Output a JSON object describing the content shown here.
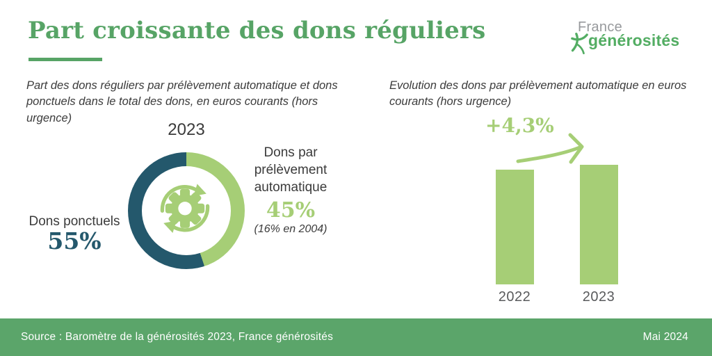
{
  "header": {
    "title": "Part croissante des dons réguliers",
    "logo": {
      "top": "France",
      "bottom": "générosités"
    }
  },
  "left_section": {
    "subtitle": "Part des dons réguliers par prélèvement automatique et dons ponctuels dans le total des dons, en euros courants (hors urgence)",
    "year_label": "2023",
    "left_label": "Dons ponctuels",
    "left_value": "55%",
    "right_label": "Dons par prélèvement automatique",
    "right_value": "45%",
    "right_note": "(16% en 2004)"
  },
  "right_section": {
    "subtitle": "Evolution des dons par prélèvement automatique en euros courants (hors urgence)",
    "growth_label": "+4,3%",
    "bar_labels": [
      "2022",
      "2023"
    ]
  },
  "footer": {
    "source": "Source : Baromètre de la générosités 2023, France générosités",
    "date": "Mai 2024"
  },
  "colors": {
    "title_green": "#57a466",
    "light_green": "#a6ce76",
    "dark_teal": "#24586c",
    "footer_green": "#5ba56a",
    "logo_green": "#53ad63",
    "text_dark": "#3b3b3b",
    "text_gray": "#97999c"
  },
  "chart_data": [
    {
      "type": "pie",
      "donut": true,
      "title": "2023",
      "labels": [
        "Dons par prélèvement automatique",
        "Dons ponctuels"
      ],
      "values": [
        45,
        55
      ],
      "unit": "%",
      "colors": [
        "#a6ce76",
        "#24586c"
      ],
      "start_angle_deg": 0,
      "clockwise": true,
      "annotations": [
        "45% (16% en 2004)",
        "55%"
      ],
      "legend_position": "sides",
      "center_icon": "gear-sync"
    },
    {
      "type": "bar",
      "title": "Evolution des dons par prélèvement automatique en euros courants (hors urgence)",
      "categories": [
        "2022",
        "2023"
      ],
      "values": [
        100,
        104.3
      ],
      "values_note": "no value axis shown; relative index estimated from +4,3% annotation",
      "annotation": "+4,3%",
      "bar_color": "#a6ce76",
      "grid": false,
      "ylim": [
        0,
        110
      ]
    }
  ]
}
